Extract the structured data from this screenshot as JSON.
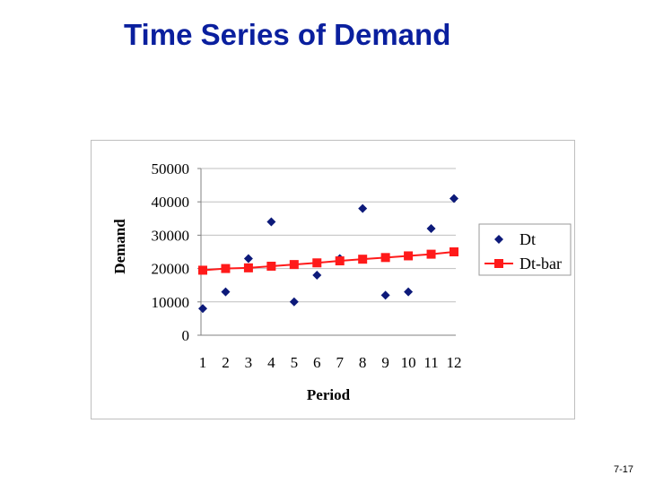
{
  "slide": {
    "title": "Time Series of Demand",
    "number": "7-17"
  },
  "colors": {
    "title": "#0a1f9e",
    "dt": "#0d1a7a",
    "dt_bar": "#ff1a1a",
    "grid": "#bfbfbf"
  },
  "chart_data": {
    "type": "scatter",
    "title": "",
    "xlabel": "Period",
    "ylabel": "Demand",
    "x": [
      1,
      2,
      3,
      4,
      5,
      6,
      7,
      8,
      9,
      10,
      11,
      12
    ],
    "ylim": [
      0,
      50000
    ],
    "yticks": [
      0,
      10000,
      20000,
      30000,
      40000,
      50000
    ],
    "grid": true,
    "legend": "right",
    "series": [
      {
        "name": "Dt",
        "kind": "scatter",
        "marker": "diamond",
        "values": [
          8000,
          13000,
          23000,
          34000,
          10000,
          18000,
          23000,
          38000,
          12000,
          13000,
          32000,
          41000
        ]
      },
      {
        "name": "Dt-bar",
        "kind": "line",
        "marker": "square",
        "values": [
          19500,
          20000,
          20200,
          20700,
          21200,
          21700,
          22300,
          22800,
          23300,
          23800,
          24300,
          25000
        ]
      }
    ]
  }
}
